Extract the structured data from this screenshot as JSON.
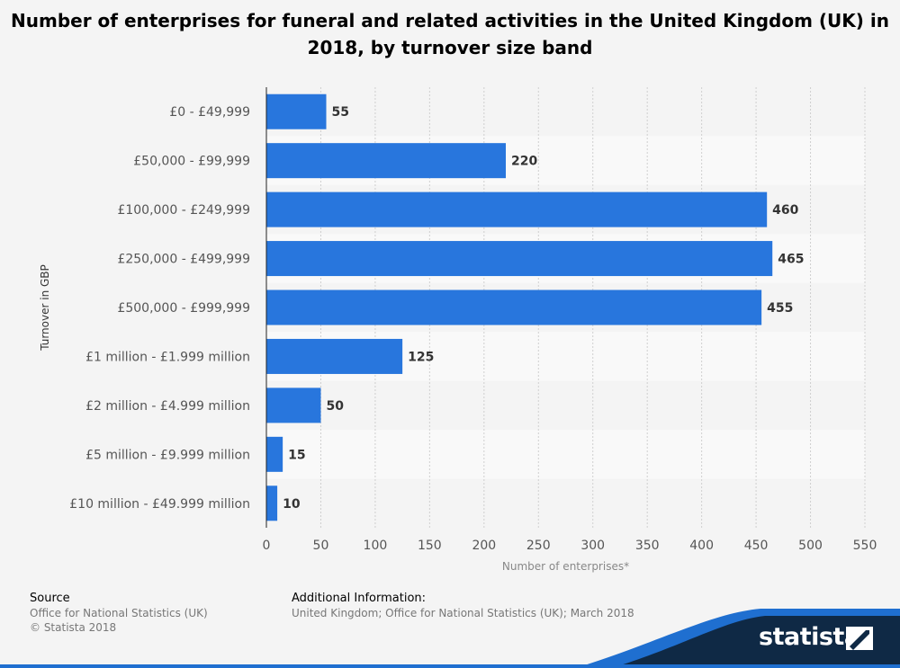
{
  "title": "Number of enterprises for funeral and related activities in the United Kingdom (UK) in 2018, by turnover size band",
  "footer": {
    "source_heading": "Source",
    "source_line1": "Office for National Statistics (UK)",
    "source_line2": "© Statista 2018",
    "info_heading": "Additional Information:",
    "info_text": "United Kingdom; Office for National Statistics (UK); March 2018"
  },
  "brand": {
    "name": "statista"
  },
  "colors": {
    "bar": "#2876dd",
    "background": "#f4f4f4",
    "band": "#f9f9f9",
    "brand_dark": "#0f2945",
    "brand_blue": "#1f6fd0"
  },
  "chart_data": {
    "type": "bar",
    "orientation": "horizontal",
    "categories": [
      "£0 - £49,999",
      "£50,000 - £99,999",
      "£100,000 - £249,999",
      "£250,000 - £499,999",
      "£500,000 - £999,999",
      "£1 million - £1.999 million",
      "£2 million - £4.999 million",
      "£5 million - £9.999 million",
      "£10 million - £49.999 million"
    ],
    "values": [
      55,
      220,
      460,
      465,
      455,
      125,
      50,
      15,
      10
    ],
    "xlabel": "Number of enterprises*",
    "ylabel": "Turnover in GBP",
    "xlim": [
      0,
      550
    ],
    "xticks": [
      0,
      50,
      100,
      150,
      200,
      250,
      300,
      350,
      400,
      450,
      500,
      550
    ],
    "grid": true,
    "data_labels": true
  }
}
